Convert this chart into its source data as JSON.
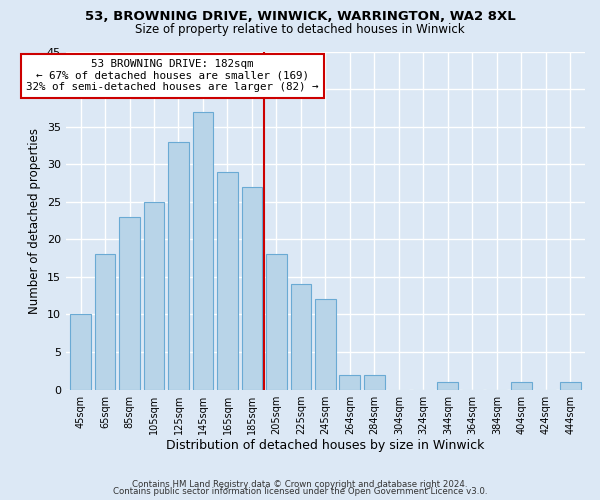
{
  "title1": "53, BROWNING DRIVE, WINWICK, WARRINGTON, WA2 8XL",
  "title2": "Size of property relative to detached houses in Winwick",
  "xlabel": "Distribution of detached houses by size in Winwick",
  "ylabel": "Number of detached properties",
  "bar_labels": [
    "45sqm",
    "65sqm",
    "85sqm",
    "105sqm",
    "125sqm",
    "145sqm",
    "165sqm",
    "185sqm",
    "205sqm",
    "225sqm",
    "245sqm",
    "264sqm",
    "284sqm",
    "304sqm",
    "324sqm",
    "344sqm",
    "364sqm",
    "384sqm",
    "404sqm",
    "424sqm",
    "444sqm"
  ],
  "bar_values": [
    10,
    18,
    23,
    25,
    33,
    37,
    29,
    27,
    18,
    14,
    12,
    2,
    2,
    0,
    0,
    1,
    0,
    0,
    1,
    0,
    1
  ],
  "bar_color": "#b8d4e8",
  "bar_edge_color": "#6aaad4",
  "vline_x": 7.5,
  "vline_color": "#cc0000",
  "annotation_title": "53 BROWNING DRIVE: 182sqm",
  "annotation_line1": "← 67% of detached houses are smaller (169)",
  "annotation_line2": "32% of semi-detached houses are larger (82) →",
  "annotation_box_edge": "#cc0000",
  "annotation_box_face": "white",
  "ylim": [
    0,
    45
  ],
  "yticks": [
    0,
    5,
    10,
    15,
    20,
    25,
    30,
    35,
    40,
    45
  ],
  "footer1": "Contains HM Land Registry data © Crown copyright and database right 2024.",
  "footer2": "Contains public sector information licensed under the Open Government Licence v3.0.",
  "bg_color": "#dce8f5",
  "plot_bg_color": "#dce8f5"
}
